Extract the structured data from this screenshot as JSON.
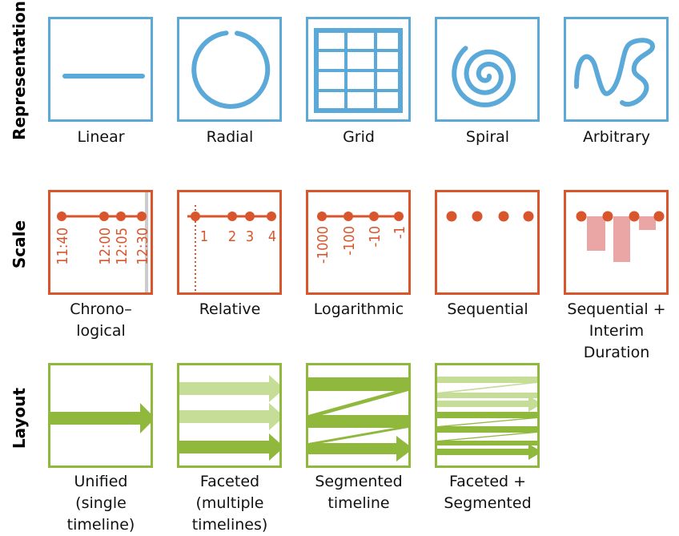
{
  "rows": {
    "representation": "Representation",
    "scale": "Scale",
    "layout": "Layout"
  },
  "representation": [
    {
      "label": [
        "Linear"
      ],
      "icon": "linear-line-icon"
    },
    {
      "label": [
        "Radial"
      ],
      "icon": "radial-circle-icon"
    },
    {
      "label": [
        "Grid"
      ],
      "icon": "grid-icon"
    },
    {
      "label": [
        "Spiral"
      ],
      "icon": "spiral-icon"
    },
    {
      "label": [
        "Arbitrary"
      ],
      "icon": "arbitrary-curve-icon"
    }
  ],
  "scale": [
    {
      "label": [
        "Chrono–",
        "logical"
      ],
      "ticks": [
        "11:40",
        "12:00",
        "12:05",
        "12:30"
      ]
    },
    {
      "label": [
        "Relative"
      ],
      "ticks": [
        "1",
        "2",
        "3",
        "4"
      ]
    },
    {
      "label": [
        "Logarithmic"
      ],
      "ticks": [
        "-1000",
        "-100",
        "-10",
        "-1"
      ]
    },
    {
      "label": [
        "Sequential"
      ],
      "ticks": []
    },
    {
      "label": [
        "Sequential +",
        "Interim",
        "Duration"
      ],
      "ticks": []
    }
  ],
  "layout": [
    {
      "label": [
        "Unified",
        "(single",
        "timeline)"
      ],
      "icon": "unified-arrow-icon"
    },
    {
      "label": [
        "Faceted",
        "(multiple",
        "timelines)"
      ],
      "icon": "faceted-arrows-icon"
    },
    {
      "label": [
        "Segmented",
        "timeline"
      ],
      "icon": "segmented-zigzag-icon"
    },
    {
      "label": [
        "Faceted +",
        "Segmented"
      ],
      "icon": "faceted-segmented-icon"
    }
  ],
  "colors": {
    "representation": "#5aa9d9",
    "scale": "#d9552c",
    "scale_duration": "#eaa6a4",
    "layout": "#8fb83d",
    "layout_light": "#c5dd97"
  }
}
